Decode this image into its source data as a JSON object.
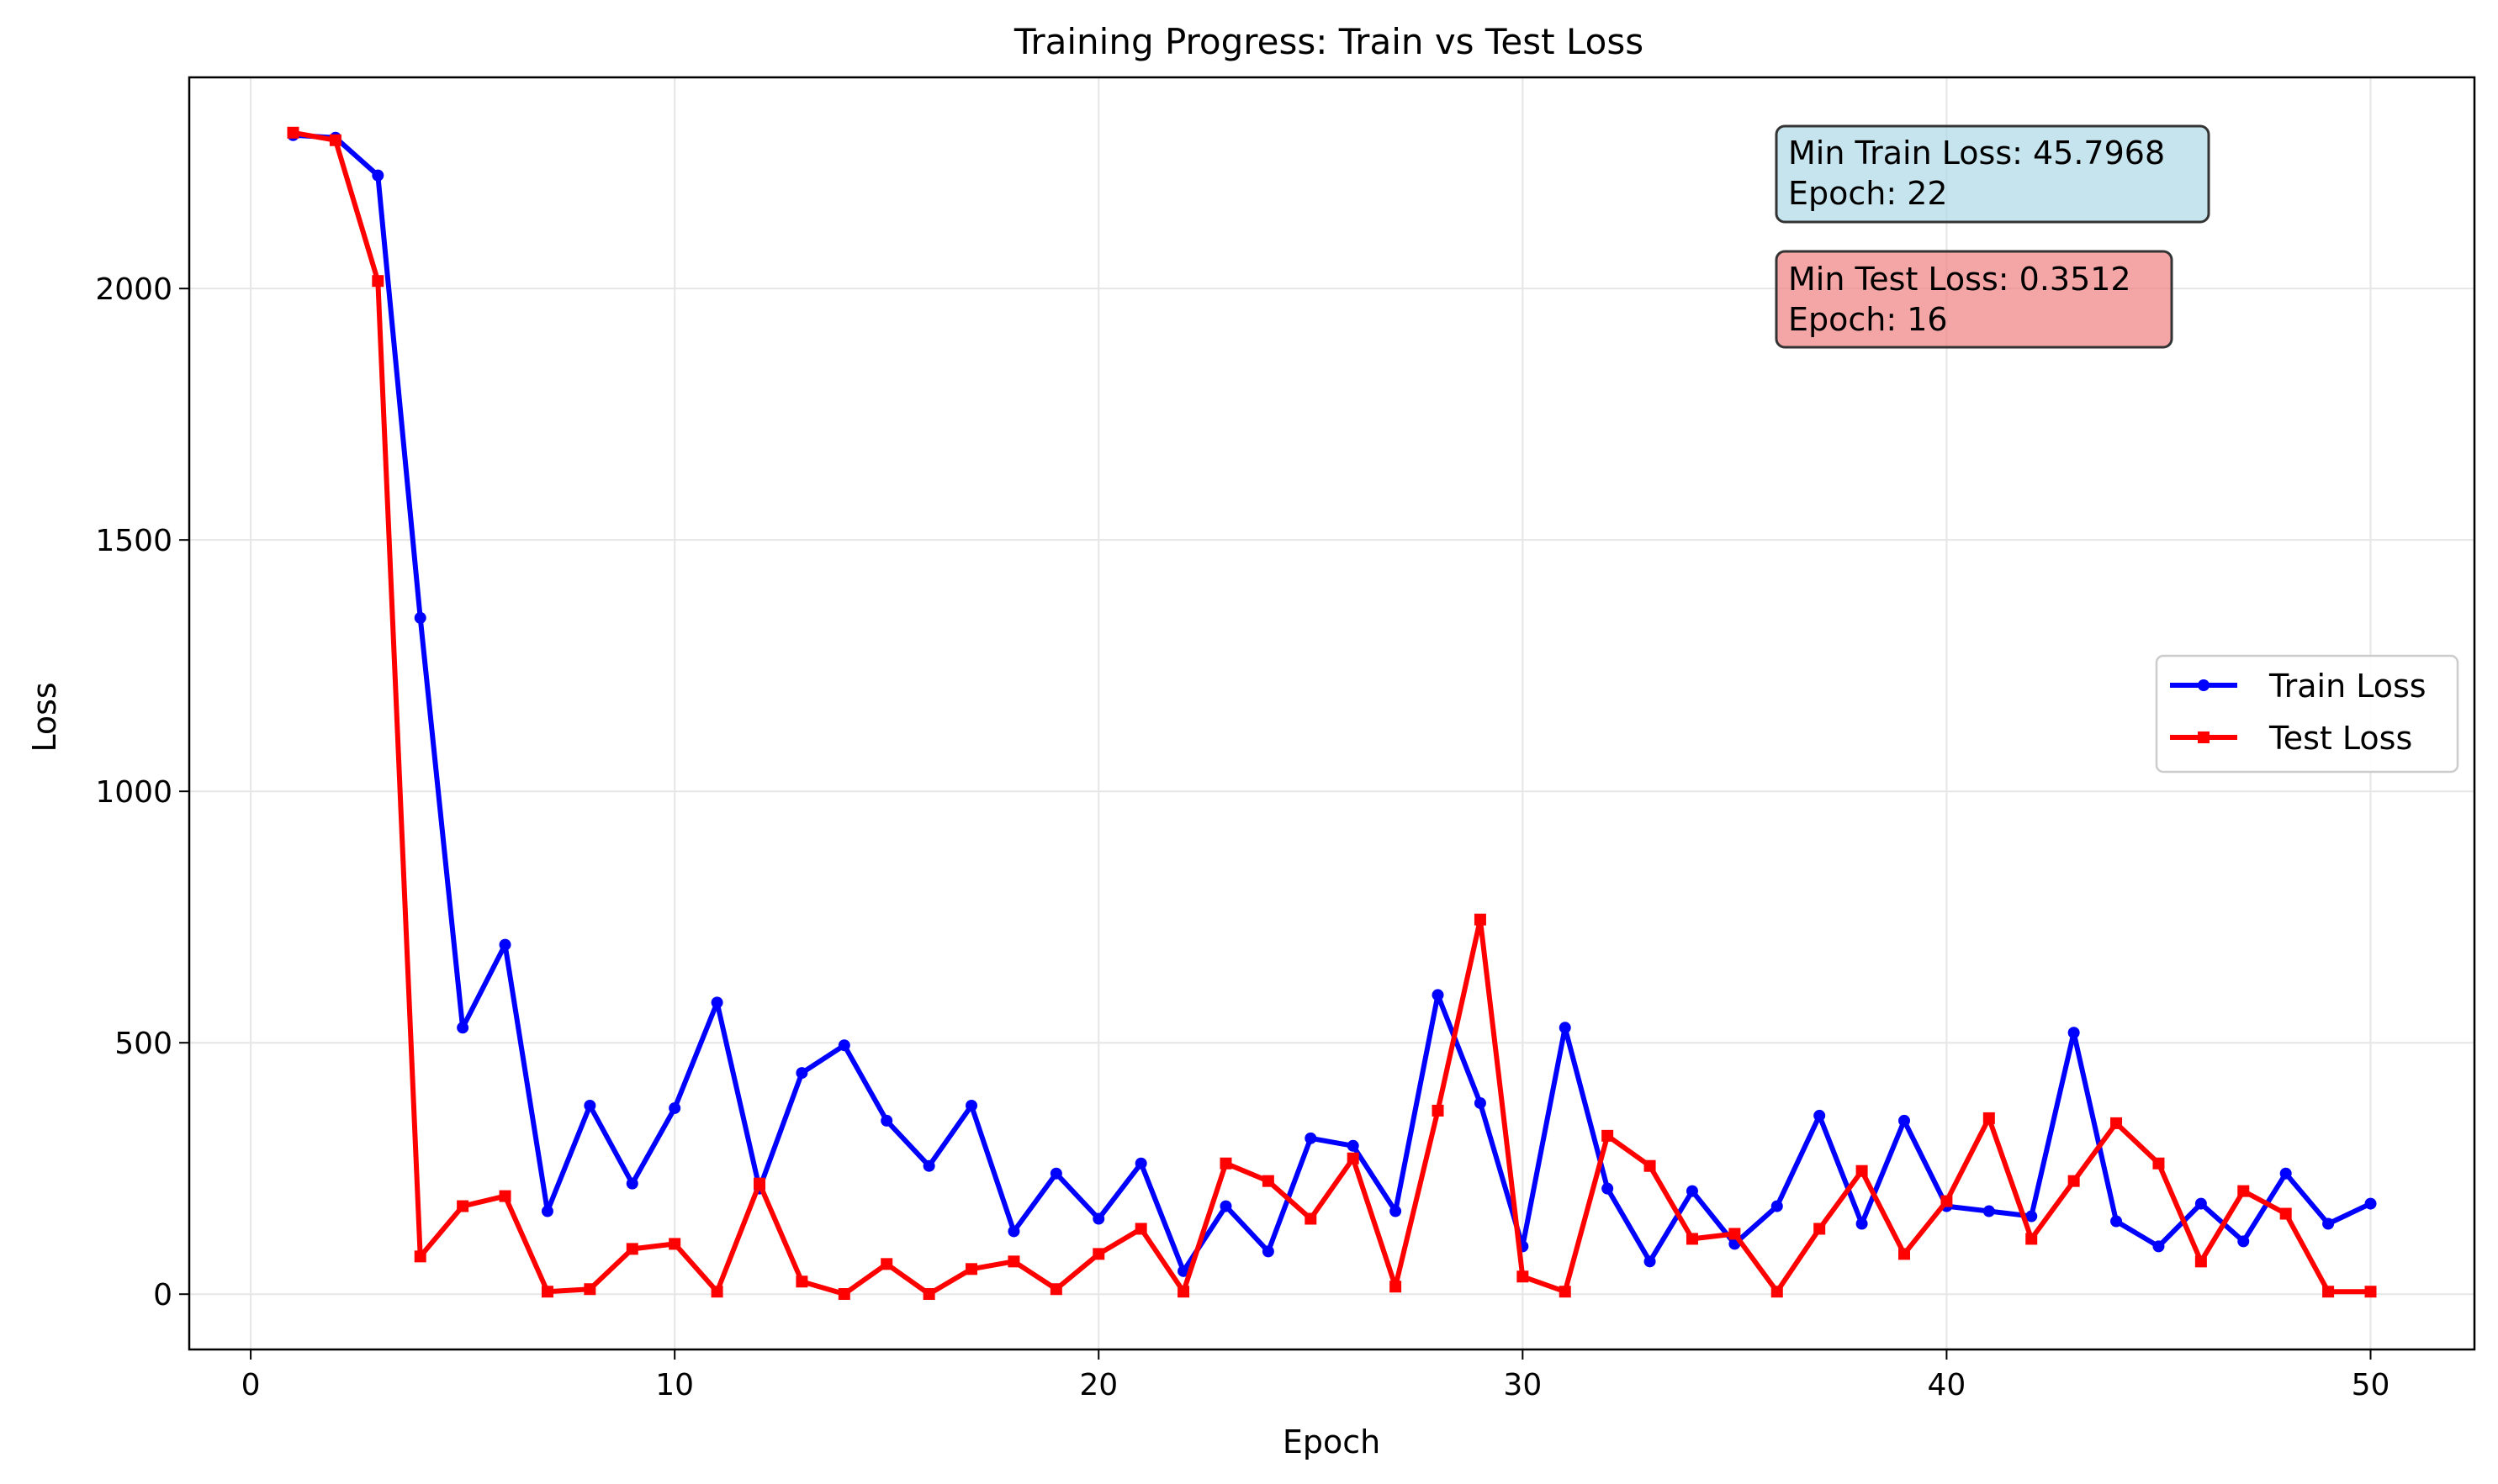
{
  "chart_data": {
    "type": "line",
    "title": "Training Progress: Train vs Test Loss",
    "xlabel": "Epoch",
    "ylabel": "Loss",
    "xlim": [
      -1.45,
      52.45
    ],
    "ylim": [
      -110,
      2420
    ],
    "xticks": [
      0,
      10,
      20,
      30,
      40,
      50
    ],
    "yticks": [
      0,
      500,
      1000,
      1500,
      2000
    ],
    "xtick_labels": [
      "0",
      "10",
      "20",
      "30",
      "40",
      "50"
    ],
    "ytick_labels": [
      "0",
      "500",
      "1000",
      "1500",
      "2000"
    ],
    "grid": true,
    "legend_position": "center-right",
    "x": [
      1,
      2,
      3,
      4,
      5,
      6,
      7,
      8,
      9,
      10,
      11,
      12,
      13,
      14,
      15,
      16,
      17,
      18,
      19,
      20,
      21,
      22,
      23,
      24,
      25,
      26,
      27,
      28,
      29,
      30,
      31,
      32,
      33,
      34,
      35,
      36,
      37,
      38,
      39,
      40,
      41,
      42,
      43,
      44,
      45,
      46,
      47,
      48,
      49,
      50
    ],
    "series": [
      {
        "name": "Train Loss",
        "color": "#0000ff",
        "marker": "circle",
        "values": [
          2305,
          2300,
          2225,
          1345,
          530,
          695,
          165,
          375,
          220,
          370,
          580,
          210,
          440,
          495,
          345,
          255,
          375,
          125,
          240,
          150,
          260,
          45.7968,
          175,
          85,
          310,
          295,
          165,
          595,
          380,
          95,
          530,
          210,
          65,
          205,
          100,
          175,
          355,
          140,
          345,
          175,
          165,
          155,
          520,
          145,
          95,
          180,
          105,
          240,
          140,
          180
        ]
      },
      {
        "name": "Test Loss",
        "color": "#ff0000",
        "marker": "square",
        "values": [
          2310,
          2295,
          2015,
          75,
          175,
          195,
          5,
          10,
          90,
          100,
          5,
          220,
          25,
          0.3512,
          60,
          0.3512,
          50,
          65,
          10,
          80,
          130,
          5,
          260,
          225,
          150,
          270,
          15,
          365,
          745,
          35,
          5,
          315,
          255,
          110,
          120,
          5,
          130,
          245,
          80,
          185,
          350,
          110,
          225,
          340,
          260,
          65,
          205,
          160,
          5,
          5
        ]
      }
    ],
    "annotations": [
      {
        "line1": "Min Train Loss: 45.7968",
        "line2": "Epoch: 22",
        "bg": "#add8e6"
      },
      {
        "line1": "Min Test Loss: 0.3512",
        "line2": "Epoch: 16",
        "bg": "#f08080"
      }
    ]
  }
}
